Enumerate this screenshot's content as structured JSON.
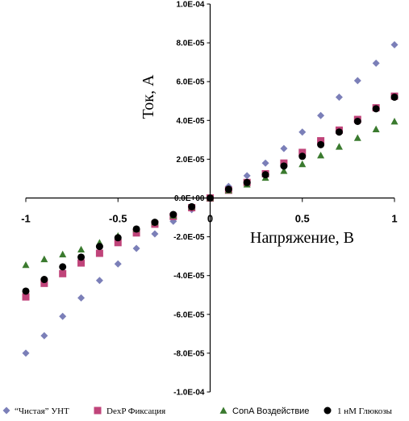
{
  "chart_data": {
    "type": "scatter",
    "xlabel": "Напряжение, В",
    "ylabel": "Ток, А",
    "xlim": [
      -1,
      1
    ],
    "ylim": [
      -0.0001,
      0.0001
    ],
    "x_ticks": [
      -1,
      -0.5,
      0,
      0.5,
      1
    ],
    "x_tick_labels": [
      "-1",
      "-0.5",
      "0",
      "0.5",
      "1"
    ],
    "y_ticks": [
      0.0001,
      8e-05,
      6e-05,
      4e-05,
      2e-05,
      0,
      -2e-05,
      -4e-05,
      -6e-05,
      -8e-05,
      -0.0001
    ],
    "y_tick_labels": [
      "1.0E-04",
      "8.0E-05",
      "6.0E-05",
      "4.0E-05",
      "2.0E-05",
      "0.0E+00",
      "-2.0E-05",
      "-4.0E-05",
      "-6.0E-05",
      "-8.0E-05",
      "-1.0E-04"
    ],
    "grid": false,
    "legend_position": "bottom",
    "x": [
      -1,
      -0.9,
      -0.8,
      -0.7,
      -0.6,
      -0.5,
      -0.4,
      -0.3,
      -0.2,
      -0.1,
      0,
      0.1,
      0.2,
      0.3,
      0.4,
      0.5,
      0.6,
      0.7,
      0.8,
      0.9,
      1
    ],
    "series": [
      {
        "name": "“Чистая” УНТ",
        "marker": "diamond",
        "color": "#7b7fb8",
        "values": [
          -8e-05,
          -7.1e-05,
          -6.1e-05,
          -5.15e-05,
          -4.25e-05,
          -3.4e-05,
          -2.6e-05,
          -1.85e-05,
          -1.2e-05,
          -6e-06,
          0,
          6e-06,
          1.15e-05,
          1.8e-05,
          2.55e-05,
          3.4e-05,
          4.25e-05,
          5.2e-05,
          6.05e-05,
          6.95e-05,
          7.9e-05
        ]
      },
      {
        "name": "DexP Фиксация",
        "marker": "square",
        "color": "#c0447a",
        "values": [
          -5.1e-05,
          -4.4e-05,
          -3.9e-05,
          -3.35e-05,
          -2.85e-05,
          -2.3e-05,
          -1.8e-05,
          -1.35e-05,
          -9.5e-06,
          -5e-06,
          0,
          4e-06,
          8e-06,
          1.25e-05,
          1.8e-05,
          2.35e-05,
          2.95e-05,
          3.5e-05,
          4.05e-05,
          4.65e-05,
          5.25e-05
        ]
      },
      {
        "name": "ConA Воздействие",
        "marker": "triangle",
        "color": "#3a7a2e",
        "values": [
          -3.45e-05,
          -3.15e-05,
          -2.9e-05,
          -2.65e-05,
          -2.3e-05,
          -1.95e-05,
          -1.6e-05,
          -1.25e-05,
          -9e-06,
          -4.5e-06,
          0,
          4e-06,
          7e-06,
          1.05e-05,
          1.4e-05,
          1.75e-05,
          2.2e-05,
          2.65e-05,
          3.1e-05,
          3.55e-05,
          3.95e-05
        ]
      },
      {
        "name": "1 нМ Глюкозы",
        "marker": "circle",
        "color": "#000000",
        "values": [
          -4.8e-05,
          -4.2e-05,
          -3.55e-05,
          -3.05e-05,
          -2.5e-05,
          -2.05e-05,
          -1.6e-05,
          -1.25e-05,
          -8.5e-06,
          -4.5e-06,
          0,
          4.5e-06,
          8e-06,
          1.2e-05,
          1.65e-05,
          2.15e-05,
          2.75e-05,
          3.4e-05,
          3.95e-05,
          4.6e-05,
          5.2e-05
        ]
      }
    ]
  }
}
